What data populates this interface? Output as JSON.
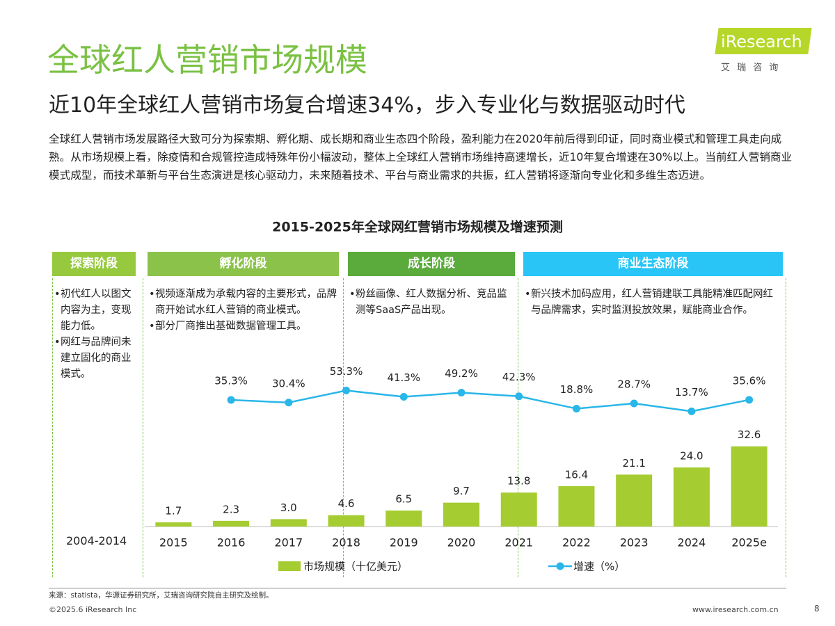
{
  "header": {
    "title": "全球红人营销市场规模",
    "subtitle": "近10年全球红人营销市场复合增速34%，步入专业化与数据驱动时代"
  },
  "logo": {
    "brand": "iResearch",
    "tagline": "艾 瑞 咨 询"
  },
  "paragraph": "全球红人营销市场发展路径大致可分为探索期、孵化期、成长期和商业生态四个阶段，盈利能力在2020年前后得到印证，同时商业模式和管理工具走向成熟。从市场规模上看，除疫情和合规管控造成特殊年份小幅波动，整体上全球红人营销市场维持高速增长，近10年复合增速在30%以上。当前红人营销商业模式成型，而技术革新与平台生态演进是核心驱动力，未来随着技术、平台与商业需求的共振，红人营销将逐渐向专业化和多维生态迈进。",
  "stages": [
    {
      "name": "探索阶段",
      "bullets": [
        "初代红人以图文内容为主，变现能力低。",
        "网红与品牌间未建立固化的商业模式。"
      ],
      "period": "2004-2014"
    },
    {
      "name": "孵化阶段",
      "bullets": [
        "视频逐渐成为承载内容的主要形式，品牌商开始试水红人营销的商业模式。",
        "部分厂商推出基础数据管理工具。"
      ]
    },
    {
      "name": "成长阶段",
      "bullets": [
        "粉丝画像、红人数据分析、竞品监测等SaaS产品出现。"
      ]
    },
    {
      "name": "商业生态阶段",
      "bullets": [
        "新兴技术加码应用，红人营销建联工具能精准匹配网红与品牌需求，实时监测投放效果，赋能商业合作。"
      ]
    }
  ],
  "chart_data": {
    "type": "combo",
    "title": "2015-2025年全球网红营销市场规模及增速预测",
    "categories": [
      "2015",
      "2016",
      "2017",
      "2018",
      "2019",
      "2020",
      "2021",
      "2022",
      "2023",
      "2024",
      "2025e"
    ],
    "series": [
      {
        "name": "市场规模（十亿美元）",
        "type": "bar",
        "color": "#a5cc30",
        "values": [
          1.7,
          2.3,
          3.0,
          4.6,
          6.5,
          9.7,
          13.8,
          16.4,
          21.1,
          24.0,
          32.6
        ],
        "value_labels": [
          "1.7",
          "2.3",
          "3.0",
          "4.6",
          "6.5",
          "9.7",
          "13.8",
          "16.4",
          "21.1",
          "24.0",
          "32.6"
        ]
      },
      {
        "name": "增速（%）",
        "type": "line",
        "axis": "y2",
        "color": "#29b6e8",
        "values": [
          null,
          35.3,
          30.4,
          53.3,
          41.3,
          49.2,
          42.3,
          18.8,
          28.7,
          13.7,
          35.6
        ],
        "value_labels": [
          null,
          "35.3%",
          "30.4%",
          "53.3%",
          "41.3%",
          "49.2%",
          "42.3%",
          "18.8%",
          "28.7%",
          "13.7%",
          "35.6%"
        ]
      }
    ],
    "ylim": [
      0,
      67
    ],
    "y2lim": [
      -205,
      108
    ]
  },
  "footer": {
    "source": "来源：statista，华源证券研究所，艾瑞咨询研究院自主研究及绘制。",
    "copyright": "©2025.6 iResearch Inc",
    "url": "www.iresearch.com.cn",
    "page": "8"
  }
}
